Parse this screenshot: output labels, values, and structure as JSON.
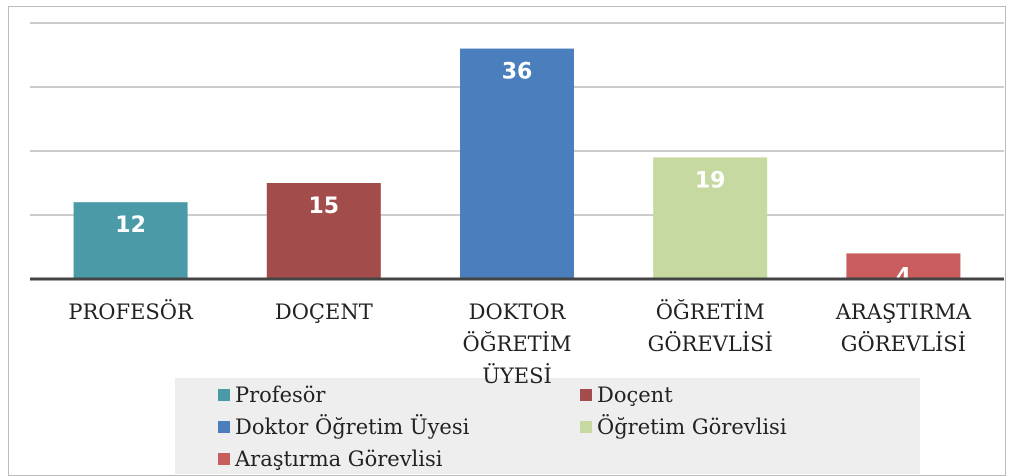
{
  "chart_data": {
    "type": "bar",
    "categories": [
      "PROFESÖR",
      "DOÇENT",
      "DOKTOR ÖĞRETİM ÜYESİ",
      "ÖĞRETİM GÖREVLİSİ",
      "ARAŞTIRMA GÖREVLİSİ"
    ],
    "values": [
      12,
      15,
      36,
      19,
      4
    ],
    "colors": [
      "#4a9aa8",
      "#a34c4c",
      "#4a7ebd",
      "#c5d9a0",
      "#c95c5c"
    ],
    "legend_labels": [
      "Profesör",
      "Doçent",
      "Doktor Öğretim Üyesi",
      "Öğretim Görevlisi",
      "Araştırma Görevlisi"
    ],
    "ylim": [
      0,
      40
    ],
    "yticks": [
      0,
      10,
      20,
      30,
      40
    ],
    "grid": true
  }
}
